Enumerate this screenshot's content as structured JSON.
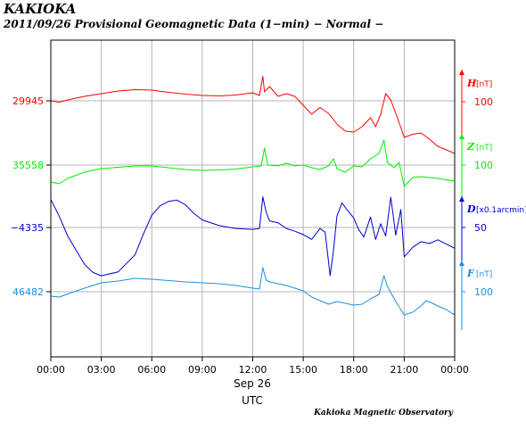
{
  "chart_data": {
    "type": "line",
    "title": "KAKIOKA",
    "subtitle": "2011/09/26  Provisional Geomagnetic Data (1−min)  − Normal −",
    "credit": "Kakioka Magnetic Observatory",
    "x_ticks": [
      "00:00",
      "03:00",
      "06:00",
      "09:00",
      "12:00",
      "15:00",
      "18:00",
      "21:00",
      "00:00"
    ],
    "x_date_label": "Sep 26",
    "xlabel": "UTC",
    "xlim_hours": [
      0,
      24
    ],
    "grid": true,
    "series": [
      {
        "name": "H",
        "unit": "[nT]",
        "color": "#ff0000",
        "left_label": "29945",
        "right_scale_label": "100",
        "points": [
          [
            0,
            0
          ],
          [
            0.5,
            -3
          ],
          [
            1,
            2
          ],
          [
            2,
            10
          ],
          [
            3,
            16
          ],
          [
            4,
            22
          ],
          [
            5,
            25
          ],
          [
            6,
            24
          ],
          [
            7,
            19
          ],
          [
            8,
            15
          ],
          [
            9,
            12
          ],
          [
            10,
            11
          ],
          [
            11,
            13
          ],
          [
            12,
            18
          ],
          [
            12.4,
            12
          ],
          [
            12.6,
            55
          ],
          [
            12.7,
            20
          ],
          [
            13,
            32
          ],
          [
            13.5,
            10
          ],
          [
            14,
            16
          ],
          [
            14.5,
            10
          ],
          [
            15,
            -10
          ],
          [
            15.5,
            -30
          ],
          [
            16,
            -15
          ],
          [
            16.5,
            -28
          ],
          [
            17,
            -52
          ],
          [
            17.5,
            -68
          ],
          [
            18,
            -70
          ],
          [
            18.5,
            -58
          ],
          [
            19,
            -38
          ],
          [
            19.3,
            -58
          ],
          [
            19.6,
            -30
          ],
          [
            19.9,
            16
          ],
          [
            20.2,
            2
          ],
          [
            20.6,
            -38
          ],
          [
            21,
            -82
          ],
          [
            21.5,
            -75
          ],
          [
            22,
            -72
          ],
          [
            22.5,
            -86
          ],
          [
            23,
            -102
          ],
          [
            24,
            -118
          ]
        ]
      },
      {
        "name": "Z",
        "unit": "[nT]",
        "color": "#00ee00",
        "left_label": "35558",
        "right_scale_label": "100",
        "points": [
          [
            0,
            -38
          ],
          [
            0.5,
            -42
          ],
          [
            1,
            -30
          ],
          [
            2,
            -16
          ],
          [
            3,
            -8
          ],
          [
            5,
            -2
          ],
          [
            6,
            -2
          ],
          [
            7,
            -6
          ],
          [
            8,
            -10
          ],
          [
            9,
            -12
          ],
          [
            10,
            -11
          ],
          [
            11,
            -9
          ],
          [
            12,
            -4
          ],
          [
            12.5,
            -2
          ],
          [
            12.7,
            38
          ],
          [
            12.9,
            0
          ],
          [
            13.5,
            -2
          ],
          [
            14,
            4
          ],
          [
            14.5,
            -2
          ],
          [
            15,
            0
          ],
          [
            15.5,
            -6
          ],
          [
            16,
            -10
          ],
          [
            16.5,
            -2
          ],
          [
            16.8,
            14
          ],
          [
            17,
            -8
          ],
          [
            17.5,
            -16
          ],
          [
            18,
            -2
          ],
          [
            18.5,
            -4
          ],
          [
            19,
            14
          ],
          [
            19.5,
            26
          ],
          [
            19.8,
            56
          ],
          [
            20,
            6
          ],
          [
            20.4,
            -6
          ],
          [
            20.7,
            6
          ],
          [
            21,
            -48
          ],
          [
            21.5,
            -28
          ],
          [
            22,
            -26
          ],
          [
            23,
            -30
          ],
          [
            24,
            -36
          ]
        ]
      },
      {
        "name": "D",
        "unit": "[x0.1arcmin]",
        "color": "#0000cc",
        "left_label": "−4335",
        "right_scale_label": "50",
        "points": [
          [
            0,
            59
          ],
          [
            0.5,
            24
          ],
          [
            1,
            -18
          ],
          [
            1.5,
            -48
          ],
          [
            2,
            -78
          ],
          [
            2.5,
            -95
          ],
          [
            3,
            -102
          ],
          [
            4,
            -94
          ],
          [
            5,
            -58
          ],
          [
            5.5,
            -14
          ],
          [
            6,
            26
          ],
          [
            6.5,
            46
          ],
          [
            7,
            55
          ],
          [
            7.5,
            58
          ],
          [
            8,
            48
          ],
          [
            8.5,
            30
          ],
          [
            9,
            16
          ],
          [
            10,
            4
          ],
          [
            11,
            -2
          ],
          [
            12,
            -4
          ],
          [
            12.4,
            -2
          ],
          [
            12.6,
            65
          ],
          [
            12.8,
            32
          ],
          [
            13,
            14
          ],
          [
            13.5,
            10
          ],
          [
            14,
            -2
          ],
          [
            14.5,
            -8
          ],
          [
            15,
            -15
          ],
          [
            15.5,
            -25
          ],
          [
            16,
            -2
          ],
          [
            16.3,
            -10
          ],
          [
            16.6,
            -102
          ],
          [
            16.8,
            -48
          ],
          [
            17,
            24
          ],
          [
            17.3,
            52
          ],
          [
            17.6,
            38
          ],
          [
            18,
            20
          ],
          [
            18.3,
            -5
          ],
          [
            18.6,
            -20
          ],
          [
            19,
            22
          ],
          [
            19.3,
            -25
          ],
          [
            19.6,
            8
          ],
          [
            19.9,
            -18
          ],
          [
            20.2,
            64
          ],
          [
            20.5,
            -16
          ],
          [
            20.8,
            38
          ],
          [
            21,
            -62
          ],
          [
            21.5,
            -42
          ],
          [
            22,
            -30
          ],
          [
            22.5,
            -34
          ],
          [
            23,
            -26
          ],
          [
            24,
            -44
          ]
        ]
      },
      {
        "name": "F",
        "unit": "[nT]",
        "color": "#1a8fe0",
        "left_label": "46482",
        "right_scale_label": "100",
        "points": [
          [
            0,
            -10
          ],
          [
            0.5,
            -12
          ],
          [
            1,
            -5
          ],
          [
            2,
            8
          ],
          [
            3,
            20
          ],
          [
            4,
            24
          ],
          [
            5,
            30
          ],
          [
            6,
            28
          ],
          [
            7,
            25
          ],
          [
            8,
            22
          ],
          [
            9,
            20
          ],
          [
            10,
            18
          ],
          [
            11,
            14
          ],
          [
            12,
            8
          ],
          [
            12.4,
            6
          ],
          [
            12.6,
            54
          ],
          [
            12.8,
            26
          ],
          [
            13,
            22
          ],
          [
            14,
            14
          ],
          [
            15,
            2
          ],
          [
            15.5,
            -12
          ],
          [
            16,
            -20
          ],
          [
            16.5,
            -28
          ],
          [
            17,
            -22
          ],
          [
            17.5,
            -26
          ],
          [
            18,
            -30
          ],
          [
            18.5,
            -28
          ],
          [
            19,
            -16
          ],
          [
            19.5,
            -6
          ],
          [
            19.8,
            36
          ],
          [
            20,
            12
          ],
          [
            20.5,
            -22
          ],
          [
            21,
            -52
          ],
          [
            21.5,
            -46
          ],
          [
            22,
            -32
          ],
          [
            22.3,
            -20
          ],
          [
            22.7,
            -26
          ],
          [
            23,
            -32
          ],
          [
            23.5,
            -40
          ],
          [
            24,
            -52
          ]
        ]
      }
    ]
  }
}
